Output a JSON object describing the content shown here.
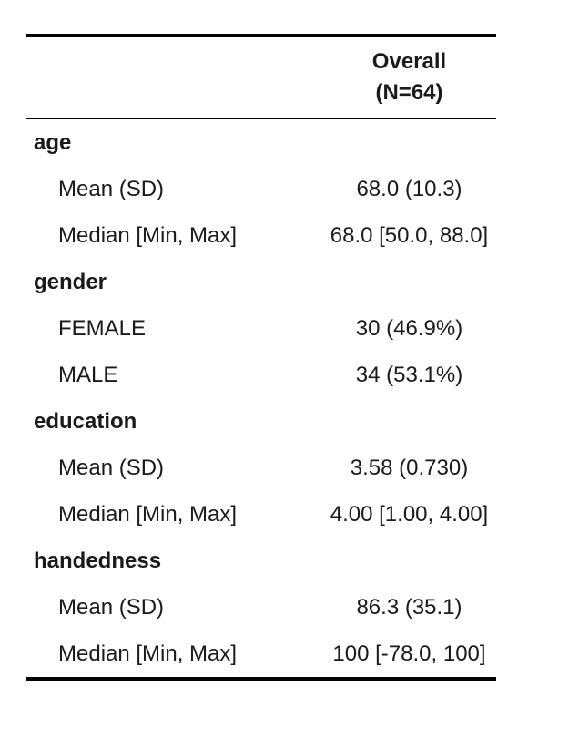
{
  "header": {
    "column_label": "Overall",
    "column_n": "(N=64)"
  },
  "variables": [
    {
      "name": "age",
      "stats": [
        {
          "label": "Mean (SD)",
          "value": "68.0 (10.3)"
        },
        {
          "label": "Median [Min, Max]",
          "value": "68.0 [50.0, 88.0]"
        }
      ]
    },
    {
      "name": "gender",
      "stats": [
        {
          "label": "FEMALE",
          "value": "30 (46.9%)"
        },
        {
          "label": "MALE",
          "value": "34 (53.1%)"
        }
      ]
    },
    {
      "name": "education",
      "stats": [
        {
          "label": "Mean (SD)",
          "value": "3.58 (0.730)"
        },
        {
          "label": "Median [Min, Max]",
          "value": "4.00 [1.00, 4.00]"
        }
      ]
    },
    {
      "name": "handedness",
      "stats": [
        {
          "label": "Mean (SD)",
          "value": "86.3 (35.1)"
        },
        {
          "label": "Median [Min, Max]",
          "value": "100 [-78.0, 100]"
        }
      ]
    }
  ]
}
